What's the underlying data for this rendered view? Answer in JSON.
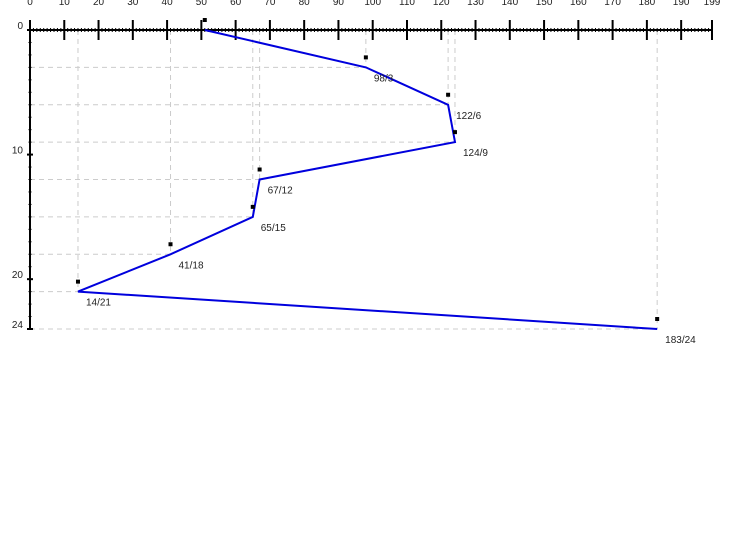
{
  "chart_data": {
    "type": "line",
    "title": "",
    "xlabel": "",
    "ylabel": "",
    "xlim": [
      0,
      199
    ],
    "ylim": [
      0,
      24
    ],
    "x_axis_position": "top",
    "y_axis_direction": "downward",
    "x_ticks": [
      0,
      10,
      20,
      30,
      40,
      50,
      60,
      70,
      80,
      90,
      100,
      110,
      120,
      130,
      140,
      150,
      160,
      170,
      180,
      190,
      199
    ],
    "y_ticks": [
      0,
      10,
      20,
      24
    ],
    "grid": false,
    "series": [
      {
        "color": "#0000dd",
        "points": [
          {
            "x": 51,
            "y": 0,
            "label": ""
          },
          {
            "x": 98,
            "y": 3,
            "label": "98/3"
          },
          {
            "x": 122,
            "y": 6,
            "label": "122/6"
          },
          {
            "x": 124,
            "y": 9,
            "label": "124/9"
          },
          {
            "x": 67,
            "y": 12,
            "label": "67/12"
          },
          {
            "x": 65,
            "y": 15,
            "label": "65/15"
          },
          {
            "x": 41,
            "y": 18,
            "label": "41/18"
          },
          {
            "x": 14,
            "y": 21,
            "label": "14/21"
          },
          {
            "x": 183,
            "y": 24,
            "label": "183/24"
          }
        ]
      }
    ]
  }
}
